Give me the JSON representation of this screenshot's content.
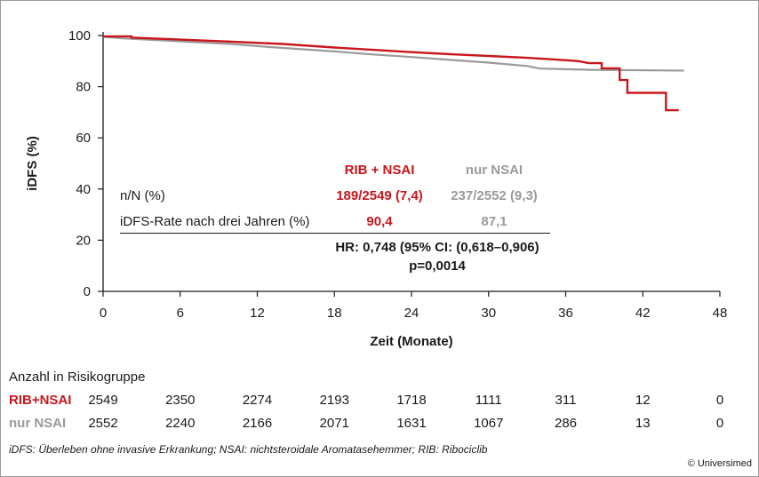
{
  "chart_data": {
    "type": "line",
    "step": true,
    "xlabel": "Zeit (Monate)",
    "ylabel": "iDFS (%)",
    "xlim": [
      0,
      48
    ],
    "ylim": [
      0,
      100
    ],
    "xticks": [
      0,
      6,
      12,
      18,
      24,
      30,
      36,
      42,
      48
    ],
    "yticks": [
      0,
      20,
      40,
      60,
      80,
      100
    ],
    "series": [
      {
        "name": "RIB + NSAI",
        "color": "#c8161d",
        "x": [
          0,
          2.2,
          2.2,
          6,
          10,
          14,
          16,
          18,
          21,
          24,
          27,
          30,
          33,
          35,
          37,
          37.8,
          38.8,
          38.8,
          40.2,
          40.2,
          40.8,
          40.8,
          43.8,
          43.8,
          44.8
        ],
        "y": [
          99.7,
          99.7,
          99.2,
          98.4,
          97.6,
          96.7,
          96.0,
          95.3,
          94.4,
          93.5,
          92.7,
          92.0,
          91.3,
          90.7,
          90.0,
          89.2,
          89.2,
          87.2,
          87.2,
          82.6,
          82.6,
          77.6,
          77.6,
          70.8,
          70.8
        ]
      },
      {
        "name": "nur NSAI",
        "color": "#9a9a9a",
        "x": [
          0,
          1.5,
          5,
          10,
          13,
          18,
          21,
          24,
          27,
          30,
          33,
          34,
          38,
          45.2
        ],
        "y": [
          99.5,
          98.9,
          98.0,
          96.7,
          95.5,
          93.8,
          92.6,
          91.6,
          90.5,
          89.4,
          88.1,
          87.1,
          86.6,
          86.3
        ]
      }
    ]
  },
  "summary": {
    "head_rib": "RIB + NSAI",
    "head_nsai": "nur NSAI",
    "row1_label": "n/N (%)",
    "row1_rib": "189/2549 (7,4)",
    "row1_nsai": "237/2552 (9,3)",
    "row2_label": "iDFS-Rate nach drei Jahren (%)",
    "row2_rib": "90,4",
    "row2_nsai": "87,1",
    "hr": "HR: 0,748 (95% CI: (0,618–0,906)",
    "p": "p=0,0014"
  },
  "risk": {
    "title": "Anzahl in Risikogruppe",
    "rib_label": "RIB+NSAI",
    "nsai_label": "nur NSAI",
    "rib": [
      "2549",
      "2350",
      "2274",
      "2193",
      "1718",
      "1111",
      "311",
      "12",
      "0"
    ],
    "nsai": [
      "2552",
      "2240",
      "2166",
      "2071",
      "1631",
      "1067",
      "286",
      "13",
      "0"
    ]
  },
  "footnote": "iDFS: Überleben ohne invasive Erkrankung; NSAI: nichtsteroidale Aromatasehemmer; RIB: Ribociclib",
  "copyright": "© Universimed"
}
